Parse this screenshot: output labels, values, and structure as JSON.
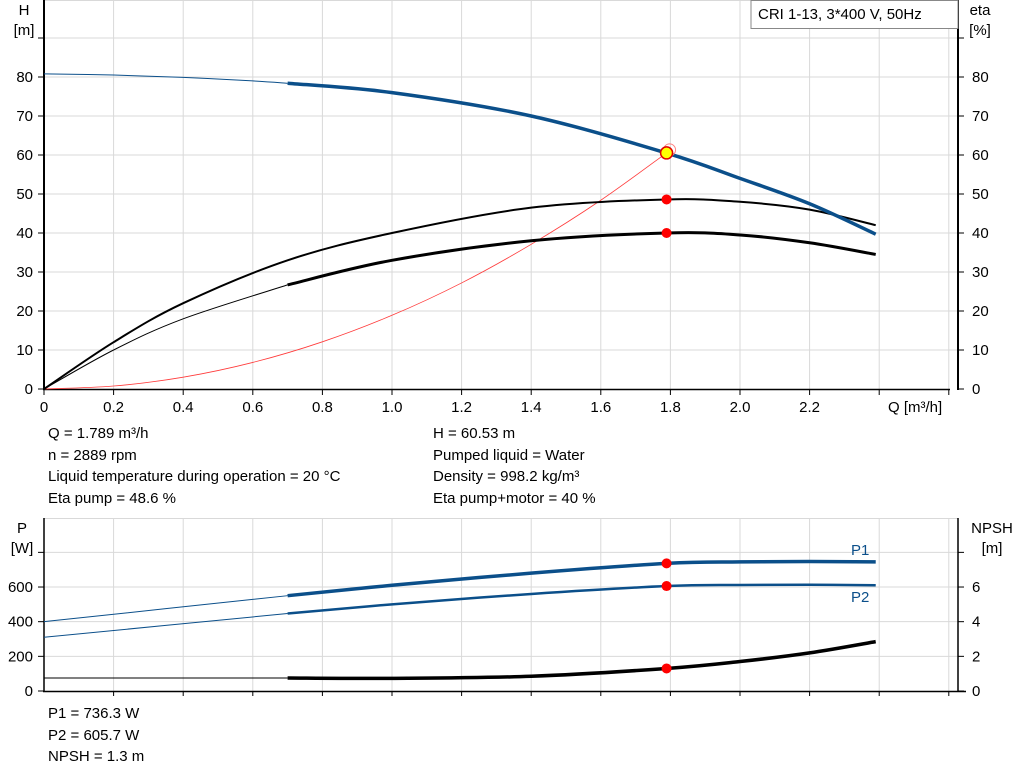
{
  "chart_data": [
    {
      "type": "line",
      "title": "CRI 1-13, 3*400 V, 50Hz",
      "xlabel": "Q [m³/h]",
      "ylabel": "H [m]",
      "ylabel_parts": [
        "H",
        "[m]"
      ],
      "y2label_parts": [
        "eta",
        "[%]"
      ],
      "xlim": [
        0,
        2.6
      ],
      "ylim": [
        0,
        100
      ],
      "grid": true,
      "x_ticks": [
        "0",
        "0.2",
        "0.4",
        "0.6",
        "0.8",
        "1.0",
        "1.2",
        "1.4",
        "1.6",
        "1.8",
        "2.0",
        "2.2"
      ],
      "y_ticks": [
        "0",
        "10",
        "20",
        "30",
        "40",
        "50",
        "60",
        "70",
        "80"
      ],
      "y2_ticks": [
        "0",
        "10",
        "20",
        "30",
        "40",
        "50",
        "60",
        "70",
        "80"
      ],
      "series": [
        {
          "key": "H",
          "color": "#0b4f8a",
          "thick_from": 0.7,
          "x": [
            0,
            0.2,
            0.4,
            0.6,
            0.7,
            1.0,
            1.4,
            1.789,
            2.0,
            2.2,
            2.39
          ],
          "y": [
            80.8,
            80.5,
            79.9,
            79.0,
            78.4,
            76.0,
            70.0,
            60.5,
            54.0,
            47.5,
            39.7
          ]
        },
        {
          "key": "eta_pump",
          "color": "#000000",
          "thick_from": null,
          "x": [
            0,
            0.2,
            0.4,
            0.7,
            1.0,
            1.4,
            1.789,
            2.0,
            2.2,
            2.39
          ],
          "y": [
            0,
            12,
            22,
            33,
            40,
            46.5,
            48.6,
            48.0,
            46.0,
            42.0
          ]
        },
        {
          "key": "eta_pump_motor",
          "color": "#000000",
          "thick_from": 0.7,
          "x": [
            0,
            0.2,
            0.4,
            0.7,
            1.0,
            1.4,
            1.789,
            2.0,
            2.2,
            2.39
          ],
          "y": [
            0,
            10,
            18,
            26.7,
            33,
            38,
            40,
            39.5,
            37.5,
            34.5
          ]
        },
        {
          "key": "system",
          "color": "#ff3b3b",
          "thick_from": null,
          "x": [
            0,
            0.2,
            0.4,
            0.6,
            0.8,
            1.0,
            1.2,
            1.4,
            1.6,
            1.789
          ],
          "y": [
            0,
            0.76,
            3.03,
            6.81,
            12.1,
            18.9,
            27.2,
            37.1,
            48.4,
            60.53
          ]
        }
      ],
      "duty_point": {
        "q": 1.789,
        "h": 60.53,
        "eta_pump": 48.6,
        "eta_pump_motor": 40
      }
    },
    {
      "type": "line",
      "ylabel_parts": [
        "P",
        "[W]"
      ],
      "y2label_parts": [
        "NPSH",
        "[m]"
      ],
      "xlim": [
        0,
        2.6
      ],
      "ylim": [
        0,
        1000
      ],
      "y2lim": [
        0,
        10
      ],
      "grid": true,
      "y_ticks": [
        "0",
        "200",
        "400",
        "600"
      ],
      "y2_ticks": [
        "0",
        "2",
        "4",
        "6"
      ],
      "series": [
        {
          "name": "P1",
          "color": "#0b4f8a",
          "axis": "left",
          "thick_from": 0.7,
          "x": [
            0,
            0.7,
            1.0,
            1.4,
            1.789,
            2.0,
            2.2,
            2.39
          ],
          "y": [
            400,
            550,
            610,
            680,
            736.3,
            745,
            747,
            745
          ]
        },
        {
          "name": "P2",
          "color": "#0b4f8a",
          "axis": "left",
          "thick_from": 0.7,
          "x": [
            0,
            0.7,
            1.0,
            1.4,
            1.789,
            2.0,
            2.2,
            2.39
          ],
          "y": [
            310,
            447,
            500,
            560,
            605.7,
            612,
            613,
            610
          ]
        },
        {
          "key": "NPSH",
          "color": "#000000",
          "axis": "right",
          "thick_from": 0.7,
          "x": [
            0,
            0.7,
            1.0,
            1.4,
            1.789,
            2.0,
            2.2,
            2.39
          ],
          "y": [
            0.75,
            0.75,
            0.73,
            0.85,
            1.3,
            1.7,
            2.2,
            2.85
          ]
        }
      ],
      "duty_point": {
        "q": 1.789,
        "p1": 736.3,
        "p2": 605.7,
        "npsh": 1.3
      }
    }
  ],
  "info_top": {
    "left": [
      "Q = 1.789 m³/h",
      "n = 2889 rpm",
      "Liquid temperature during operation = 20 °C",
      "Eta pump = 48.6 %"
    ],
    "right": [
      "H = 60.53 m",
      "Pumped liquid = Water",
      "Density = 998.2 kg/m³",
      "Eta pump+motor = 40 %"
    ]
  },
  "info_bottom": [
    "P1 = 736.3 W",
    "P2 = 605.7 W",
    "NPSH = 1.3 m"
  ]
}
